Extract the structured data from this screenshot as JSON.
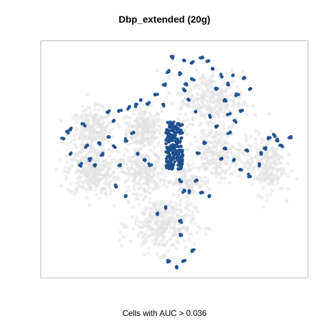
{
  "chart_data": {
    "type": "scatter",
    "title": "Dbp_extended (20g)",
    "caption": "Cells with AUC > 0.036",
    "xlabel": "",
    "ylabel": "",
    "grid": false,
    "axes_ticks": false,
    "colors": {
      "background_cells": "#e3e3e3",
      "auc_positive_cells": "#1c4f8c",
      "frame": "#bdbdbd"
    },
    "series": [
      {
        "role": "background",
        "clusters": [
          {
            "cx": -0.25,
            "cy": 0.28,
            "rx": 0.12,
            "ry": 0.16,
            "n": 260
          },
          {
            "cx": -0.68,
            "cy": 0.25,
            "rx": 0.15,
            "ry": 0.18,
            "n": 300
          },
          {
            "cx": -0.68,
            "cy": -0.12,
            "rx": 0.17,
            "ry": 0.18,
            "n": 320
          },
          {
            "cx": -0.25,
            "cy": -0.12,
            "rx": 0.16,
            "ry": 0.16,
            "n": 260
          },
          {
            "cx": -0.1,
            "cy": -0.6,
            "rx": 0.22,
            "ry": 0.22,
            "n": 380
          },
          {
            "cx": 0.3,
            "cy": 0.55,
            "rx": 0.22,
            "ry": 0.22,
            "n": 320
          },
          {
            "cx": 0.35,
            "cy": 0.05,
            "rx": 0.17,
            "ry": 0.2,
            "n": 260
          },
          {
            "cx": 0.75,
            "cy": -0.05,
            "rx": 0.13,
            "ry": 0.22,
            "n": 260
          },
          {
            "cx": 0.12,
            "cy": -0.2,
            "rx": 0.1,
            "ry": 0.12,
            "n": 120
          }
        ]
      },
      {
        "role": "highlight",
        "dense_cluster": {
          "cx": 0.0,
          "cy": 0.13,
          "rx": 0.07,
          "ry": 0.22,
          "n": 200
        },
        "points": [
          [
            -0.88,
            0.25
          ],
          [
            -0.85,
            0.28
          ],
          [
            -0.75,
            0.32
          ],
          [
            -0.72,
            0.12
          ],
          [
            -0.62,
            0.15
          ],
          [
            -0.55,
            0.22
          ],
          [
            -0.5,
            0.35
          ],
          [
            -0.45,
            0.45
          ],
          [
            -0.38,
            0.48
          ],
          [
            -0.32,
            0.5
          ],
          [
            -0.28,
            0.55
          ],
          [
            -0.22,
            0.52
          ],
          [
            -0.15,
            0.6
          ],
          [
            -0.55,
            0.45
          ],
          [
            -0.6,
            0.05
          ],
          [
            -0.65,
            -0.05
          ],
          [
            -0.4,
            0.18
          ],
          [
            -0.35,
            0.25
          ],
          [
            -0.3,
            0.05
          ],
          [
            -0.25,
            0.0
          ],
          [
            -0.2,
            -0.05
          ],
          [
            -0.45,
            -0.05
          ],
          [
            -0.48,
            -0.25
          ],
          [
            -0.4,
            -0.35
          ],
          [
            -0.15,
            -0.5
          ],
          [
            -0.08,
            -0.45
          ],
          [
            0.05,
            -0.58
          ],
          [
            -0.05,
            -0.95
          ],
          [
            0.02,
            -1.0
          ],
          [
            0.08,
            -0.95
          ],
          [
            0.15,
            -0.85
          ],
          [
            0.05,
            -0.7
          ],
          [
            0.12,
            -0.3
          ],
          [
            0.18,
            -0.2
          ],
          [
            0.22,
            -0.3
          ],
          [
            0.28,
            -0.35
          ],
          [
            0.08,
            -0.3
          ],
          [
            0.05,
            -0.2
          ],
          [
            0.2,
            0.05
          ],
          [
            0.25,
            0.15
          ],
          [
            0.38,
            0.0
          ],
          [
            0.42,
            0.1
          ],
          [
            0.5,
            0.0
          ],
          [
            0.55,
            -0.1
          ],
          [
            0.6,
            0.08
          ],
          [
            0.45,
            0.25
          ],
          [
            0.35,
            0.3
          ],
          [
            0.3,
            0.4
          ],
          [
            0.18,
            0.45
          ],
          [
            0.12,
            0.55
          ],
          [
            0.08,
            0.65
          ],
          [
            0.05,
            0.8
          ],
          [
            -0.05,
            0.82
          ],
          [
            -0.02,
            0.95
          ],
          [
            0.08,
            0.92
          ],
          [
            0.15,
            0.9
          ],
          [
            0.22,
            0.95
          ],
          [
            0.28,
            0.92
          ],
          [
            0.32,
            0.85
          ],
          [
            0.38,
            0.78
          ],
          [
            0.45,
            0.7
          ],
          [
            0.52,
            0.6
          ],
          [
            0.48,
            0.78
          ],
          [
            0.58,
            0.75
          ],
          [
            0.62,
            0.65
          ],
          [
            0.55,
            0.45
          ],
          [
            0.5,
            0.35
          ],
          [
            0.1,
            0.7
          ],
          [
            0.15,
            0.75
          ],
          [
            0.35,
            0.65
          ],
          [
            0.42,
            0.55
          ],
          [
            0.45,
            0.42
          ],
          [
            -0.08,
            0.7
          ],
          [
            -0.1,
            0.5
          ],
          [
            -0.5,
            0.12
          ],
          [
            -0.85,
            0.05
          ],
          [
            -0.78,
            -0.05
          ],
          [
            -0.7,
            0.0
          ],
          [
            -0.92,
            0.2
          ],
          [
            0.78,
            0.2
          ],
          [
            0.85,
            0.18
          ],
          [
            0.88,
            0.12
          ],
          [
            0.72,
            0.05
          ],
          [
            0.7,
            -0.05
          ],
          [
            0.62,
            -0.15
          ],
          [
            0.75,
            0.1
          ],
          [
            0.82,
            0.22
          ],
          [
            0.95,
            0.2
          ]
        ]
      }
    ],
    "xlim": [
      -1.1,
      1.1
    ],
    "ylim": [
      -1.1,
      1.1
    ]
  }
}
